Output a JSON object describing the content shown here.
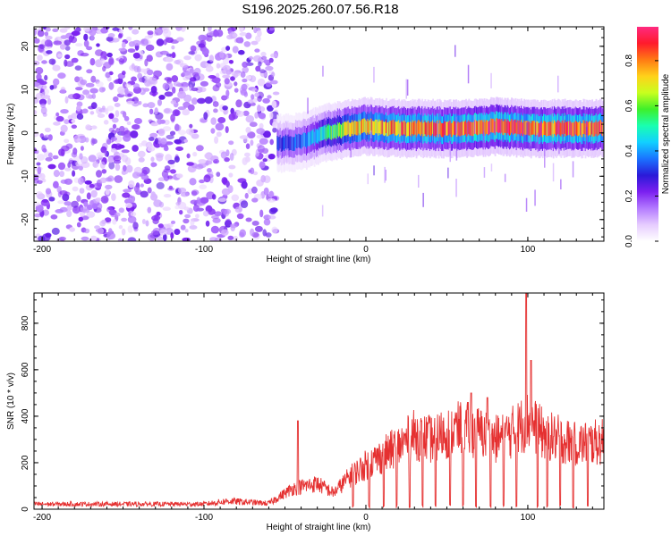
{
  "figure": {
    "title": "S196.2025.260.07.56.R18"
  },
  "colors": {
    "snr_line": "#e53030",
    "colormap": [
      "#ffffff",
      "#e6ccff",
      "#b37aff",
      "#7b1ff0",
      "#2a1ad8",
      "#1a73ff",
      "#12d0ff",
      "#19ffb0",
      "#3ef02a",
      "#c8ff1e",
      "#ffd21a",
      "#ff7a14",
      "#ff1a2c",
      "#ff2a80"
    ]
  },
  "chart_data": [
    {
      "type": "heatmap",
      "xlabel": "Height of straight line (km)",
      "ylabel": "Frequency (Hz)",
      "xlim": [
        -205,
        147
      ],
      "ylim": [
        -25,
        24.5
      ],
      "xticks": [
        -200,
        -100,
        0,
        100
      ],
      "yticks": [
        -20,
        -10,
        0,
        10,
        20
      ],
      "colorbar": {
        "label": "Normalized spectral amplitude",
        "range": [
          0,
          0.95
        ],
        "ticks": [
          0.0,
          0.2,
          0.4,
          0.6,
          0.8
        ]
      },
      "noise_region": {
        "x_range": [
          -205,
          -55
        ],
        "level": [
          0.05,
          0.25
        ]
      },
      "signal_band": [
        {
          "x": -55,
          "freq": -2.5,
          "amp": 0.3
        },
        {
          "x": -40,
          "freq": -2.0,
          "amp": 0.35
        },
        {
          "x": -25,
          "freq": 0.0,
          "amp": 0.5
        },
        {
          "x": -10,
          "freq": 1.0,
          "amp": 0.7
        },
        {
          "x": 0,
          "freq": 1.5,
          "amp": 0.75
        },
        {
          "x": 20,
          "freq": 1.0,
          "amp": 0.8
        },
        {
          "x": 40,
          "freq": 1.0,
          "amp": 0.8
        },
        {
          "x": 60,
          "freq": 1.0,
          "amp": 0.85
        },
        {
          "x": 80,
          "freq": 1.5,
          "amp": 0.9
        },
        {
          "x": 100,
          "freq": 1.0,
          "amp": 0.85
        },
        {
          "x": 120,
          "freq": 1.0,
          "amp": 0.85
        },
        {
          "x": 147,
          "freq": 1.0,
          "amp": 0.85
        }
      ],
      "grid": false
    },
    {
      "type": "line",
      "xlabel": "Height of straight line (km)",
      "ylabel": "SNR (10 * v/v)",
      "xlim": [
        -205,
        147
      ],
      "ylim": [
        0,
        930
      ],
      "xticks": [
        -200,
        -100,
        0,
        100
      ],
      "yticks": [
        0,
        200,
        400,
        600,
        800
      ],
      "baseline": [
        {
          "x": -205,
          "y": 22
        },
        {
          "x": -100,
          "y": 22
        },
        {
          "x": -85,
          "y": 35
        },
        {
          "x": -60,
          "y": 25
        },
        {
          "x": -45,
          "y": 90
        },
        {
          "x": -30,
          "y": 110
        },
        {
          "x": -20,
          "y": 70
        },
        {
          "x": -10,
          "y": 140
        },
        {
          "x": 0,
          "y": 190
        },
        {
          "x": 10,
          "y": 230
        },
        {
          "x": 20,
          "y": 270
        },
        {
          "x": 30,
          "y": 320
        },
        {
          "x": 40,
          "y": 300
        },
        {
          "x": 50,
          "y": 330
        },
        {
          "x": 60,
          "y": 350
        },
        {
          "x": 70,
          "y": 330
        },
        {
          "x": 80,
          "y": 300
        },
        {
          "x": 90,
          "y": 330
        },
        {
          "x": 100,
          "y": 380
        },
        {
          "x": 110,
          "y": 320
        },
        {
          "x": 120,
          "y": 300
        },
        {
          "x": 130,
          "y": 280
        },
        {
          "x": 147,
          "y": 290
        }
      ],
      "spikes": [
        {
          "x": -42,
          "y": 380
        },
        {
          "x": 99,
          "y": 930
        },
        {
          "x": 102,
          "y": 640
        },
        {
          "x": 65,
          "y": 500
        },
        {
          "x": 75,
          "y": 480
        }
      ],
      "dropouts": [
        -8,
        2,
        11,
        19,
        27,
        35,
        43,
        52,
        60,
        68,
        77,
        85,
        93,
        106,
        112,
        120,
        128,
        137
      ],
      "grid": false
    }
  ]
}
